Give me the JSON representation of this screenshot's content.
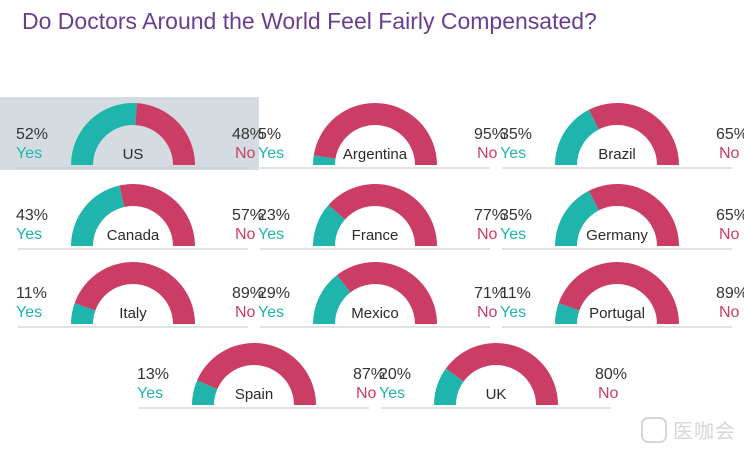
{
  "title": "Do Doctors Around the World Feel Fairly Compensated?",
  "colors": {
    "yes": "#1fb5ad",
    "no": "#cc3d65",
    "title": "#6a3d8f",
    "highlight": "#d5dce1"
  },
  "chart_data": {
    "type": "pie",
    "title": "Do Doctors Around the World Feel Fairly Compensated?",
    "series_labels": {
      "yes": "Yes",
      "no": "No"
    },
    "countries": [
      {
        "country": "US",
        "yes": 52,
        "no": 48,
        "yes_label": "52%",
        "no_label": "48%",
        "highlighted": true
      },
      {
        "country": "Argentina",
        "yes": 5,
        "no": 95,
        "yes_label": "5%",
        "no_label": "95%"
      },
      {
        "country": "Brazil",
        "yes": 35,
        "no": 65,
        "yes_label": "35%",
        "no_label": "65%"
      },
      {
        "country": "Canada",
        "yes": 43,
        "no": 57,
        "yes_label": "43%",
        "no_label": "57%"
      },
      {
        "country": "France",
        "yes": 23,
        "no": 77,
        "yes_label": "23%",
        "no_label": "77%"
      },
      {
        "country": "Germany",
        "yes": 35,
        "no": 65,
        "yes_label": "35%",
        "no_label": "65%"
      },
      {
        "country": "Italy",
        "yes": 11,
        "no": 89,
        "yes_label": "11%",
        "no_label": "89%"
      },
      {
        "country": "Mexico",
        "yes": 29,
        "no": 71,
        "yes_label": "29%",
        "no_label": "71%"
      },
      {
        "country": "Portugal",
        "yes": 11,
        "no": 89,
        "yes_label": "11%",
        "no_label": "89%"
      },
      {
        "country": "Spain",
        "yes": 13,
        "no": 87,
        "yes_label": "13%",
        "no_label": "87%"
      },
      {
        "country": "UK",
        "yes": 20,
        "no": 80,
        "yes_label": "20%",
        "no_label": "80%"
      }
    ]
  },
  "watermark": {
    "text": "医咖会"
  }
}
